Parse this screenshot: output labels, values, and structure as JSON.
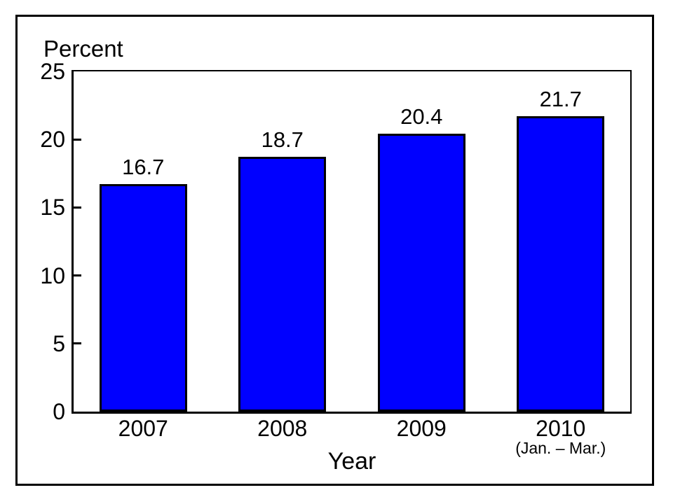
{
  "chart_data": {
    "type": "bar",
    "categories": [
      "2007",
      "2008",
      "2009",
      "2010"
    ],
    "category_sublabels": [
      "",
      "",
      "",
      "(Jan. – Mar.)"
    ],
    "values": [
      16.7,
      18.7,
      20.4,
      21.7
    ],
    "value_labels": [
      "16.7",
      "18.7",
      "20.4",
      "21.7"
    ],
    "title": "",
    "xlabel": "Year",
    "ylabel": "Percent",
    "ylim": [
      0,
      25
    ],
    "yticks": [
      0,
      5,
      10,
      15,
      20,
      25
    ],
    "bar_color": "#0000ff",
    "bar_border_color": "#000000",
    "axis_color": "#000000",
    "background_color": "#ffffff",
    "grid": "off",
    "legend": "none"
  }
}
